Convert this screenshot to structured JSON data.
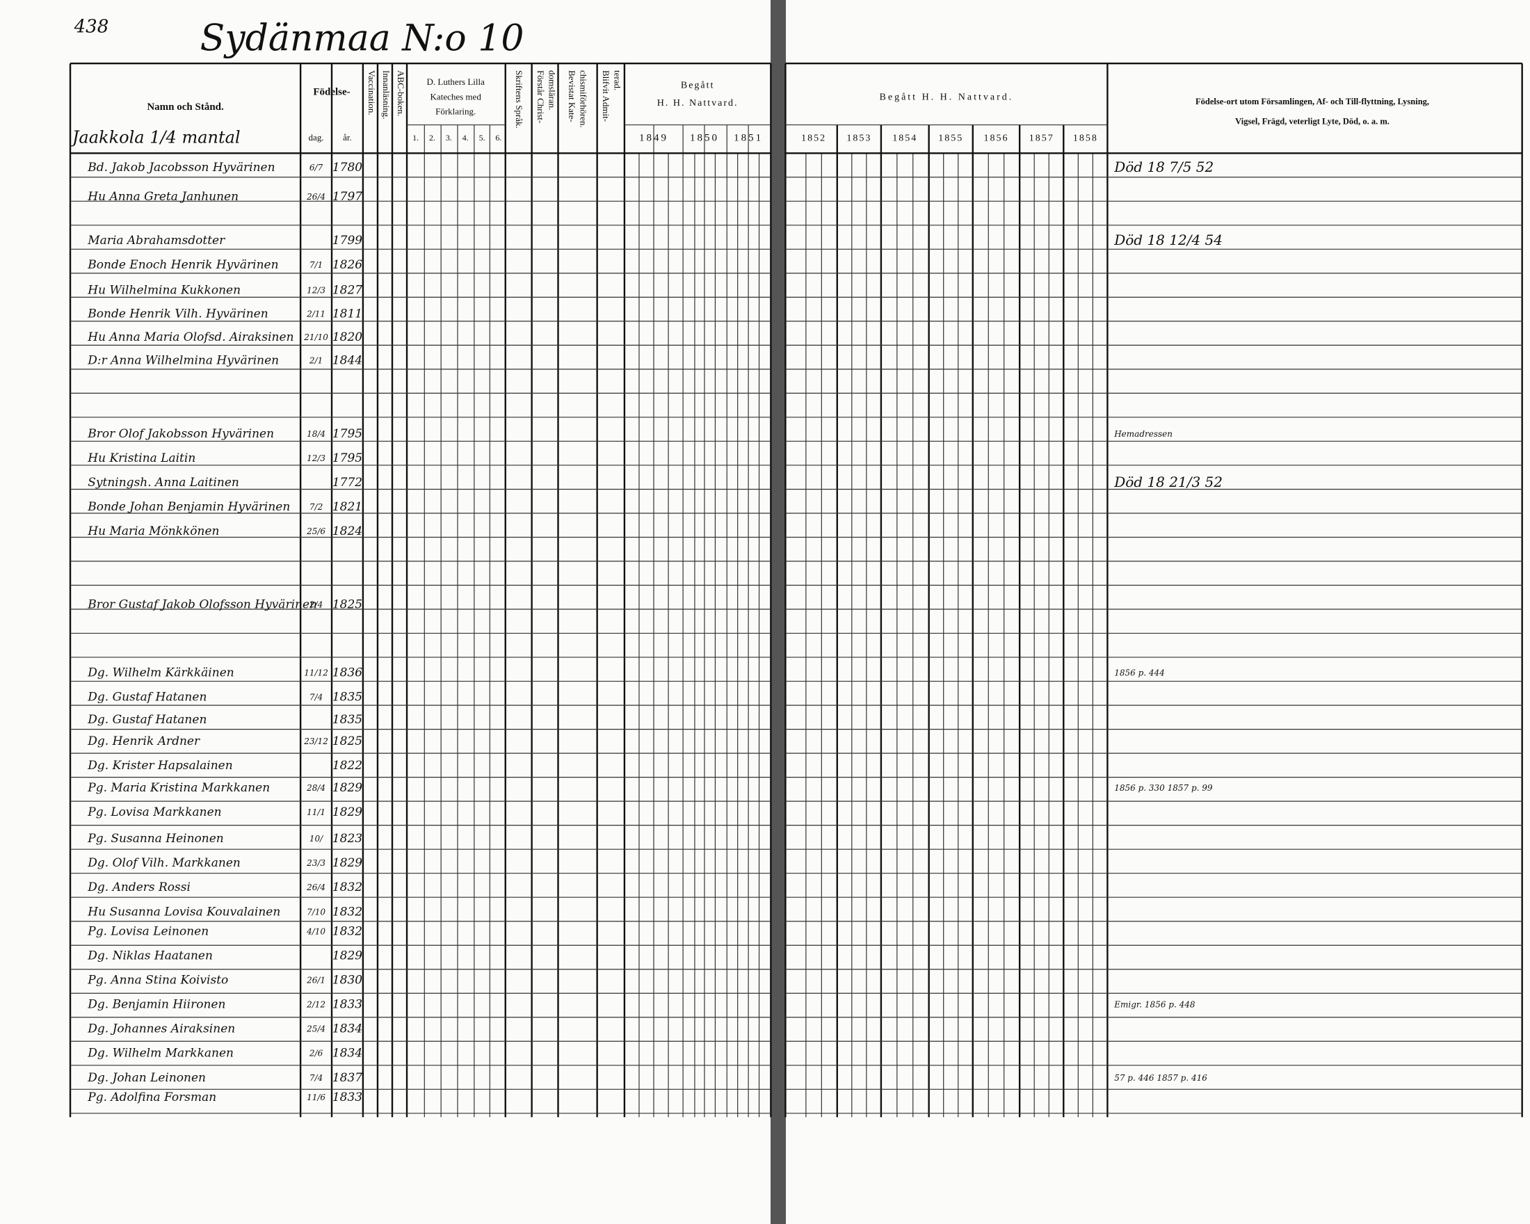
{
  "page_number": "438",
  "title": "Sydänmaa N:o 10",
  "farm": "Jaakkola 1/4 mantal",
  "left_headers": {
    "name": "Namn och Stånd.",
    "birth": "Födelse-",
    "day": "dag.",
    "year": "år.",
    "vaccination": "Vaccination.",
    "reading": "Innanläsning.",
    "abc": "ABC-boken.",
    "catechism": [
      "D. Luthers Lilla",
      "Kateches med",
      "Förklaring."
    ],
    "catechism_parts": [
      "1.",
      "2.",
      "3.",
      "4.",
      "5.",
      "6."
    ],
    "scripture": "Skriftens Språk.",
    "doctrine": [
      "Förstår Christ-",
      "domsläran."
    ],
    "hearings": [
      "Bevistat Kate-",
      "chismiförhören."
    ],
    "admitted": [
      "Blifvit Admit-",
      "terad."
    ],
    "communion": [
      "Begått",
      "H. H. Nattvard."
    ],
    "communion_years": [
      "1849",
      "1850",
      "1851"
    ]
  },
  "right_headers": {
    "communion": "Begått H. H. Nattvard.",
    "communion_years": [
      "1852",
      "1853",
      "1854",
      "1855",
      "1856",
      "1857",
      "1858"
    ],
    "notes": [
      "Födelse-ort utom Församlingen, Af- och Till-flyttning, Lysning,",
      "Vigsel, Frägd, veterligt Lyte, Död, o. a. m."
    ]
  },
  "rows": [
    {
      "name": "Bd. Jakob Jacobsson Hyvärinen",
      "day": "6/7",
      "year": "1780"
    },
    {
      "name": "Hu Anna Greta Janhunen",
      "day": "26/4",
      "year": "1797"
    },
    {
      "name": "Maria Abrahamsdotter",
      "day": "",
      "year": "1799"
    },
    {
      "name": "Bonde Enoch Henrik Hyvärinen",
      "day": "7/1",
      "year": "1826"
    },
    {
      "name": "Hu Wilhelmina Kukkonen",
      "day": "12/3",
      "year": "1827"
    },
    {
      "name": "Bonde Henrik Vilh. Hyvärinen",
      "day": "2/11",
      "year": "1811"
    },
    {
      "name": "Hu Anna Maria Olofsd. Airaksinen",
      "day": "21/10",
      "year": "1820"
    },
    {
      "name": "D:r Anna Wilhelmina Hyvärinen",
      "day": "2/1",
      "year": "1844"
    },
    {
      "name": "Bror Olof Jakobsson Hyvärinen",
      "day": "18/4",
      "year": "1795"
    },
    {
      "name": "Hu Kristina Laitin",
      "day": "12/3",
      "year": "1795"
    },
    {
      "name": "Sytningsh. Anna Laitinen",
      "day": "",
      "year": "1772"
    },
    {
      "name": "Bonde Johan Benjamin Hyvärinen",
      "day": "7/2",
      "year": "1821"
    },
    {
      "name": "Hu Maria Mönkkönen",
      "day": "25/6",
      "year": "1824"
    },
    {
      "name": "Bror Gustaf Jakob Olofsson Hyvärinen",
      "day": "2/4",
      "year": "1825"
    },
    {
      "name": "Dg. Wilhelm Kärkkäinen",
      "day": "11/12",
      "year": "1836"
    },
    {
      "name": "Dg. Gustaf Hatanen",
      "day": "7/4",
      "year": "1835"
    },
    {
      "name": "Dg. Gustaf Hatanen",
      "day": "",
      "year": "1835"
    },
    {
      "name": "Dg. Henrik Ardner",
      "day": "23/12",
      "year": "1825"
    },
    {
      "name": "Dg. Krister Hapsalainen",
      "day": "",
      "year": "1822"
    },
    {
      "name": "Pg. Maria Kristina Markkanen",
      "day": "28/4",
      "year": "1829"
    },
    {
      "name": "Pg. Lovisa Markkanen",
      "day": "11/1",
      "year": "1829"
    },
    {
      "name": "Pg. Susanna Heinonen",
      "day": "10/",
      "year": "1823"
    },
    {
      "name": "Dg. Olof Vilh. Markkanen",
      "day": "23/3",
      "year": "1829"
    },
    {
      "name": "Dg. Anders Rossi",
      "day": "26/4",
      "year": "1832"
    },
    {
      "name": "Hu Susanna Lovisa Kouvalainen",
      "day": "7/10",
      "year": "1832"
    },
    {
      "name": "Pg. Lovisa Leinonen",
      "day": "4/10",
      "year": "1832"
    },
    {
      "name": "Dg. Niklas Haatanen",
      "day": "",
      "year": "1829"
    },
    {
      "name": "Pg. Anna Stina Koivisto",
      "day": "26/1",
      "year": "1830"
    },
    {
      "name": "Dg. Benjamin Hiironen",
      "day": "2/12",
      "year": "1833"
    },
    {
      "name": "Dg. Johannes Airaksinen",
      "day": "25/4",
      "year": "1834"
    },
    {
      "name": "Dg. Wilhelm Markkanen",
      "day": "2/6",
      "year": "1834"
    },
    {
      "name": "Dg. Johan Leinonen",
      "day": "7/4",
      "year": "1837"
    },
    {
      "name": "Pg. Adolfina Forsman",
      "day": "11/6",
      "year": "1833"
    }
  ],
  "notes": [
    {
      "row": 0,
      "text": "Död 18 7/5 52"
    },
    {
      "row": 2,
      "text": "Död 18 12/4 54"
    },
    {
      "row": 8,
      "text": "Hemadressen"
    },
    {
      "row": 10,
      "text": "Död 18 21/3 52"
    },
    {
      "row": 14,
      "text": "1856 p. 444"
    },
    {
      "row": 19,
      "text": "1856 p. 330  1857 p. 99"
    },
    {
      "row": 28,
      "text": "Emigr. 1856 p. 448"
    },
    {
      "row": 31,
      "text": "57 p. 446  1857 p. 416"
    }
  ]
}
